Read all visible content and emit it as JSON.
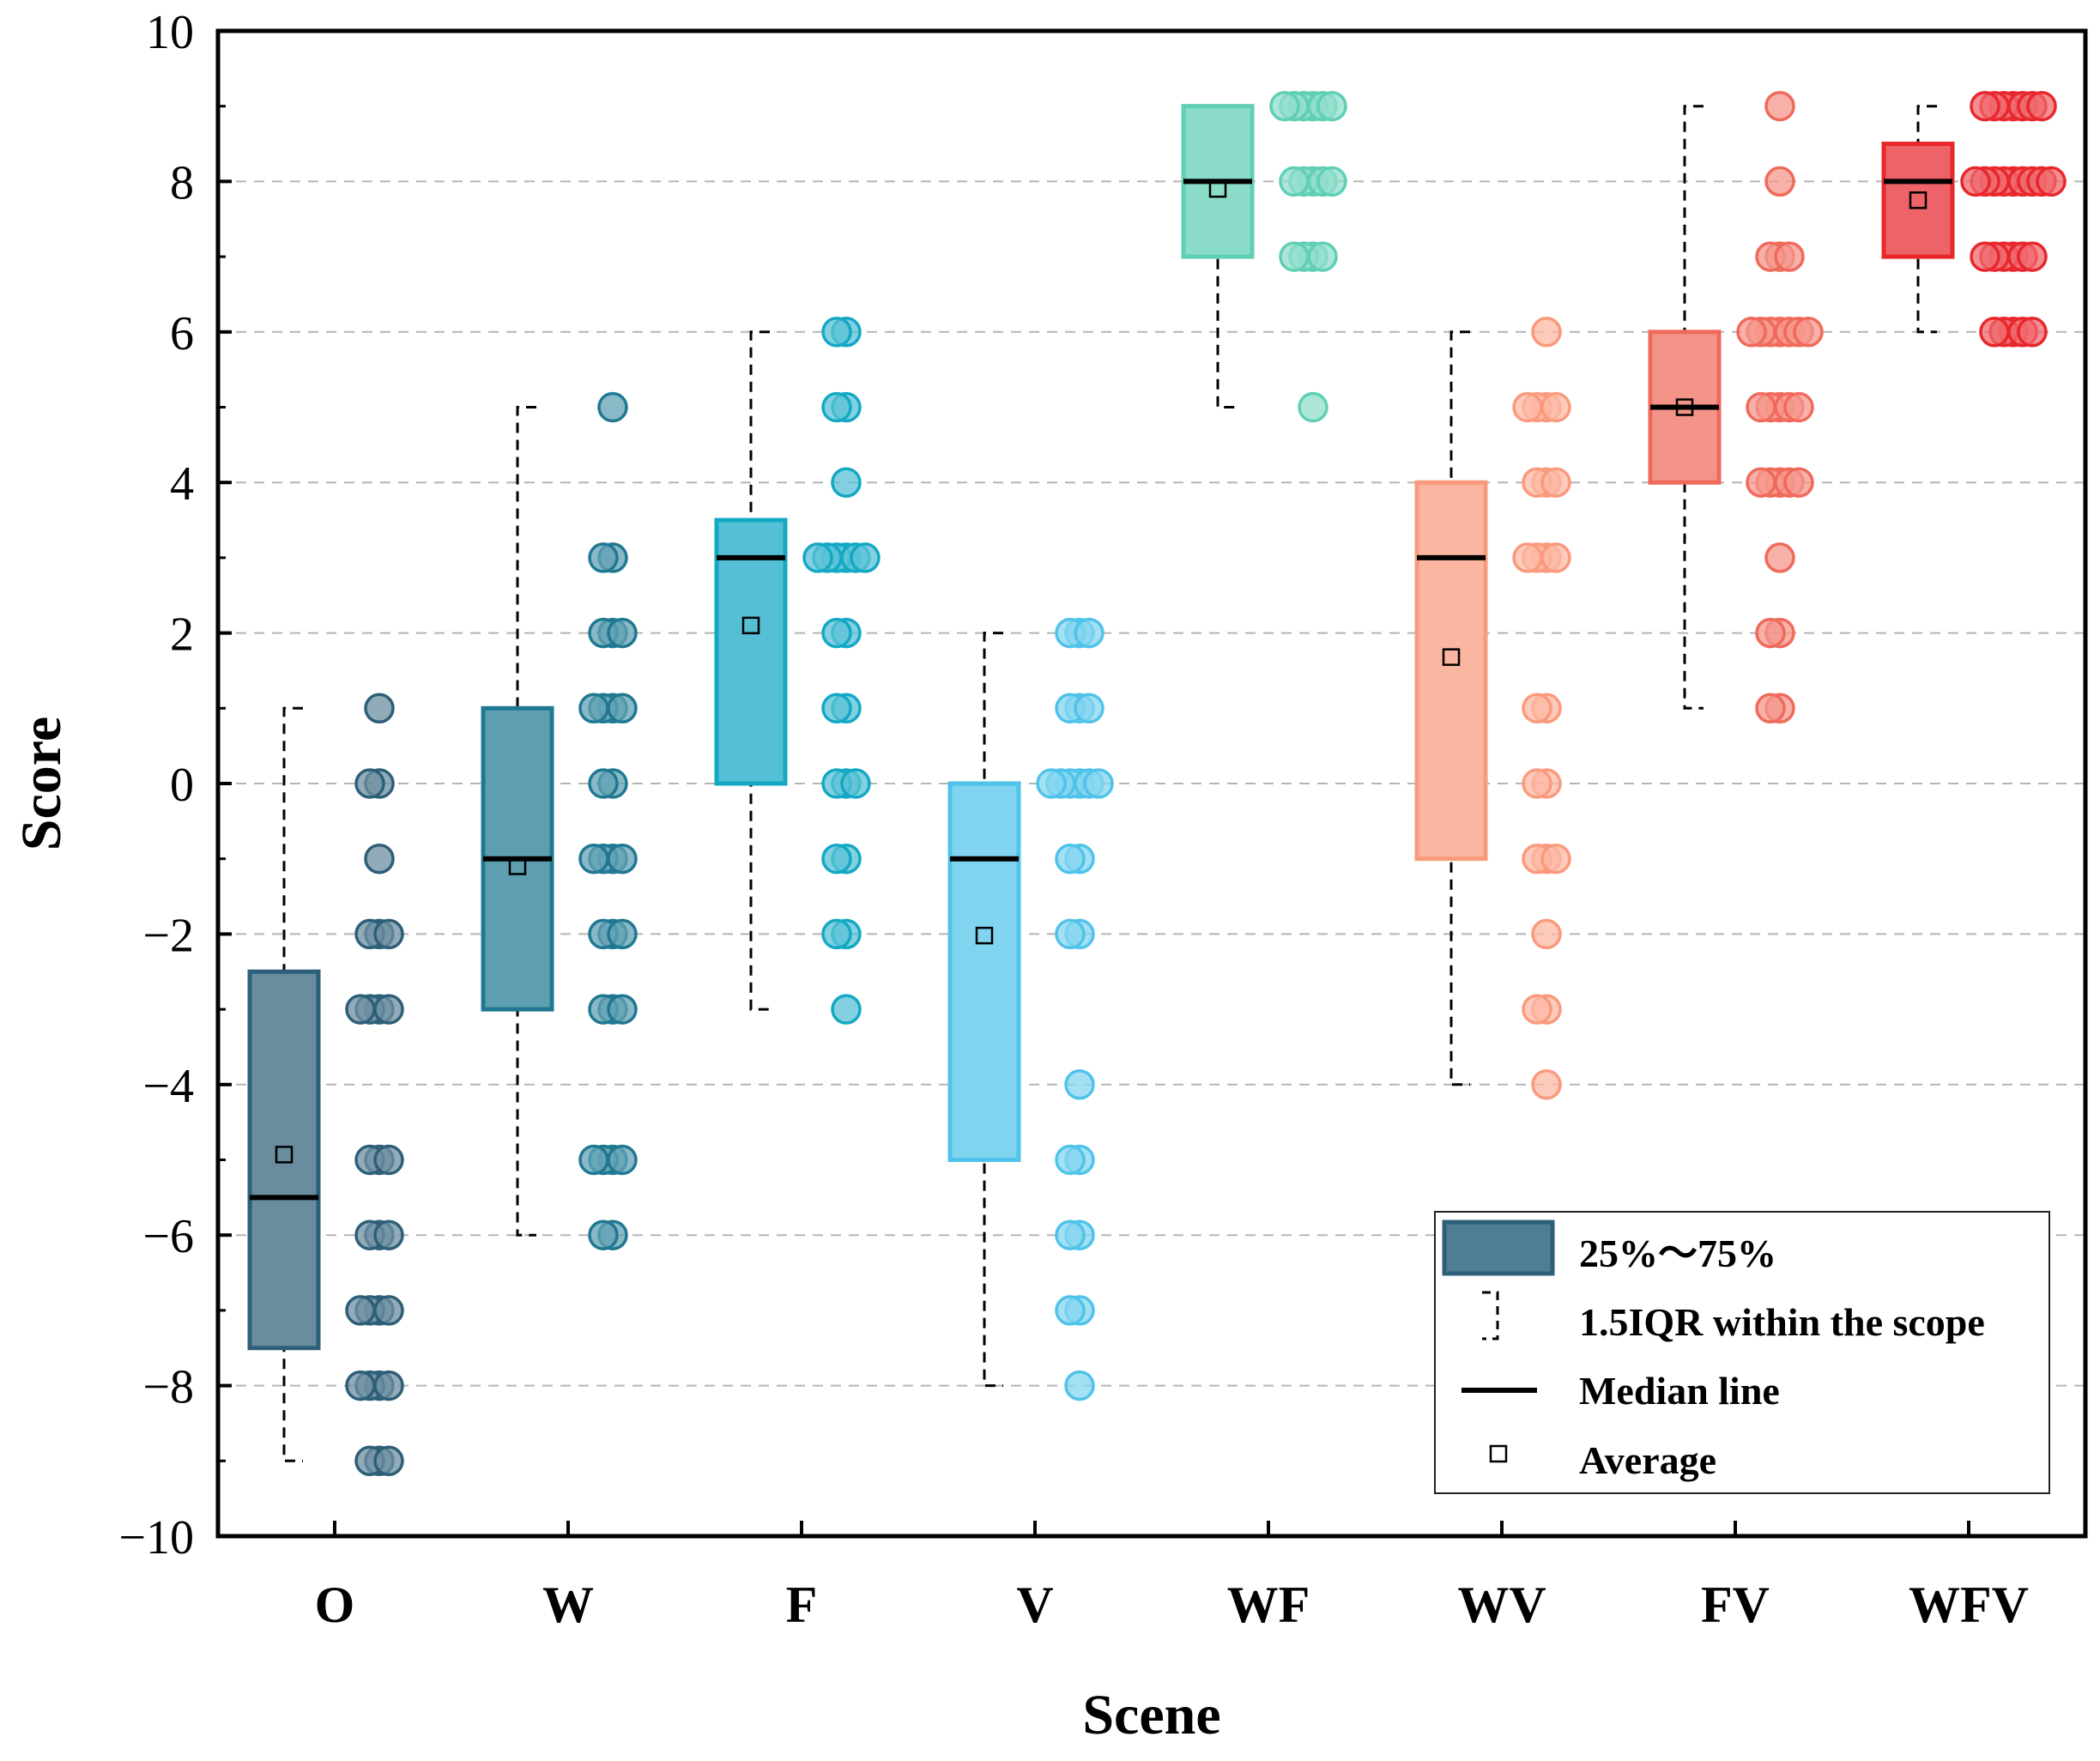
{
  "chart_data": {
    "type": "box",
    "xlabel": "Scene",
    "ylabel": "Score",
    "ylim": [
      -10,
      10
    ],
    "y_ticks": [
      -10,
      -8,
      -6,
      -4,
      -2,
      0,
      2,
      4,
      6,
      8,
      10
    ],
    "y_tick_labels": [
      "−10",
      "−8",
      "−6",
      "−4",
      "−2",
      "0",
      "2",
      "4",
      "6",
      "8",
      "10"
    ],
    "grid": "horizontal dashed",
    "legend": {
      "position": "bottom-right",
      "items": [
        "25%～75%",
        "1.5IQR within the scope",
        "Median line",
        "Average"
      ]
    },
    "series": [
      {
        "name": "O",
        "color": "#2e5f78",
        "q1": -7.5,
        "q3": -2.5,
        "median": -5.5,
        "mean": -4.93,
        "whisker_low": -9,
        "whisker_high": 1,
        "points": [
          1,
          0,
          0,
          -1,
          -2,
          -2,
          -2,
          -3,
          -3,
          -3,
          -3,
          -5,
          -5,
          -5,
          -6,
          -6,
          -6,
          -7,
          -7,
          -7,
          -7,
          -8,
          -8,
          -8,
          -8,
          -9,
          -9,
          -9
        ]
      },
      {
        "name": "W",
        "color": "#1f7892",
        "q1": -3,
        "q3": 1,
        "median": -1,
        "mean": -1.1,
        "whisker_low": -6,
        "whisker_high": 5,
        "points": [
          5,
          3,
          3,
          2,
          2,
          2,
          1,
          1,
          1,
          1,
          0,
          0,
          -1,
          -1,
          -1,
          -1,
          -2,
          -2,
          -2,
          -3,
          -3,
          -3,
          -5,
          -5,
          -5,
          -5,
          -6,
          -6
        ]
      },
      {
        "name": "F",
        "color": "#13a8c4",
        "q1": 0,
        "q3": 3.5,
        "median": 3,
        "mean": 2.1,
        "whisker_low": -3,
        "whisker_high": 6,
        "points": [
          6,
          6,
          5,
          5,
          4,
          3,
          3,
          3,
          3,
          3,
          3,
          2,
          2,
          1,
          1,
          0,
          0,
          0,
          -1,
          -1,
          -2,
          -2,
          -3
        ]
      },
      {
        "name": "V",
        "color": "#4fc3ea",
        "q1": -5,
        "q3": 0,
        "median": -1,
        "mean": -2.02,
        "whisker_low": -8,
        "whisker_high": 2,
        "points": [
          2,
          2,
          2,
          1,
          1,
          1,
          0,
          0,
          0,
          0,
          0,
          0,
          -1,
          -1,
          -2,
          -2,
          -4,
          -5,
          -5,
          -6,
          -6,
          -7,
          -7,
          -8
        ]
      },
      {
        "name": "WF",
        "color": "#5fcfb5",
        "q1": 7,
        "q3": 9,
        "median": 8,
        "mean": 7.9,
        "whisker_low": 5,
        "whisker_high": 9,
        "points": [
          9,
          9,
          9,
          9,
          9,
          9,
          8,
          8,
          8,
          8,
          8,
          7,
          7,
          7,
          7,
          5
        ]
      },
      {
        "name": "WV",
        "color": "#fa9a7d",
        "q1": -1,
        "q3": 4,
        "median": 3,
        "mean": 1.68,
        "whisker_low": -4,
        "whisker_high": 6,
        "points": [
          6,
          5,
          5,
          5,
          5,
          4,
          4,
          4,
          3,
          3,
          3,
          3,
          1,
          1,
          0,
          0,
          -1,
          -1,
          -1,
          -2,
          -3,
          -3,
          -4
        ]
      },
      {
        "name": "FV",
        "color": "#f06a5b",
        "q1": 4,
        "q3": 6,
        "median": 5,
        "mean": 5,
        "whisker_low": 1,
        "whisker_high": 9,
        "points": [
          9,
          8,
          7,
          7,
          7,
          6,
          6,
          6,
          6,
          6,
          6,
          6,
          5,
          5,
          5,
          5,
          5,
          4,
          4,
          4,
          4,
          4,
          3,
          2,
          2,
          1,
          1
        ]
      },
      {
        "name": "WFV",
        "color": "#e8272d",
        "q1": 7,
        "q3": 8.5,
        "median": 8,
        "mean": 7.75,
        "whisker_low": 6,
        "whisker_high": 9,
        "points": [
          9,
          9,
          9,
          9,
          9,
          9,
          9,
          8,
          8,
          8,
          8,
          8,
          8,
          8,
          8,
          8,
          7,
          7,
          7,
          7,
          7,
          7,
          6,
          6,
          6,
          6,
          6
        ]
      }
    ]
  }
}
